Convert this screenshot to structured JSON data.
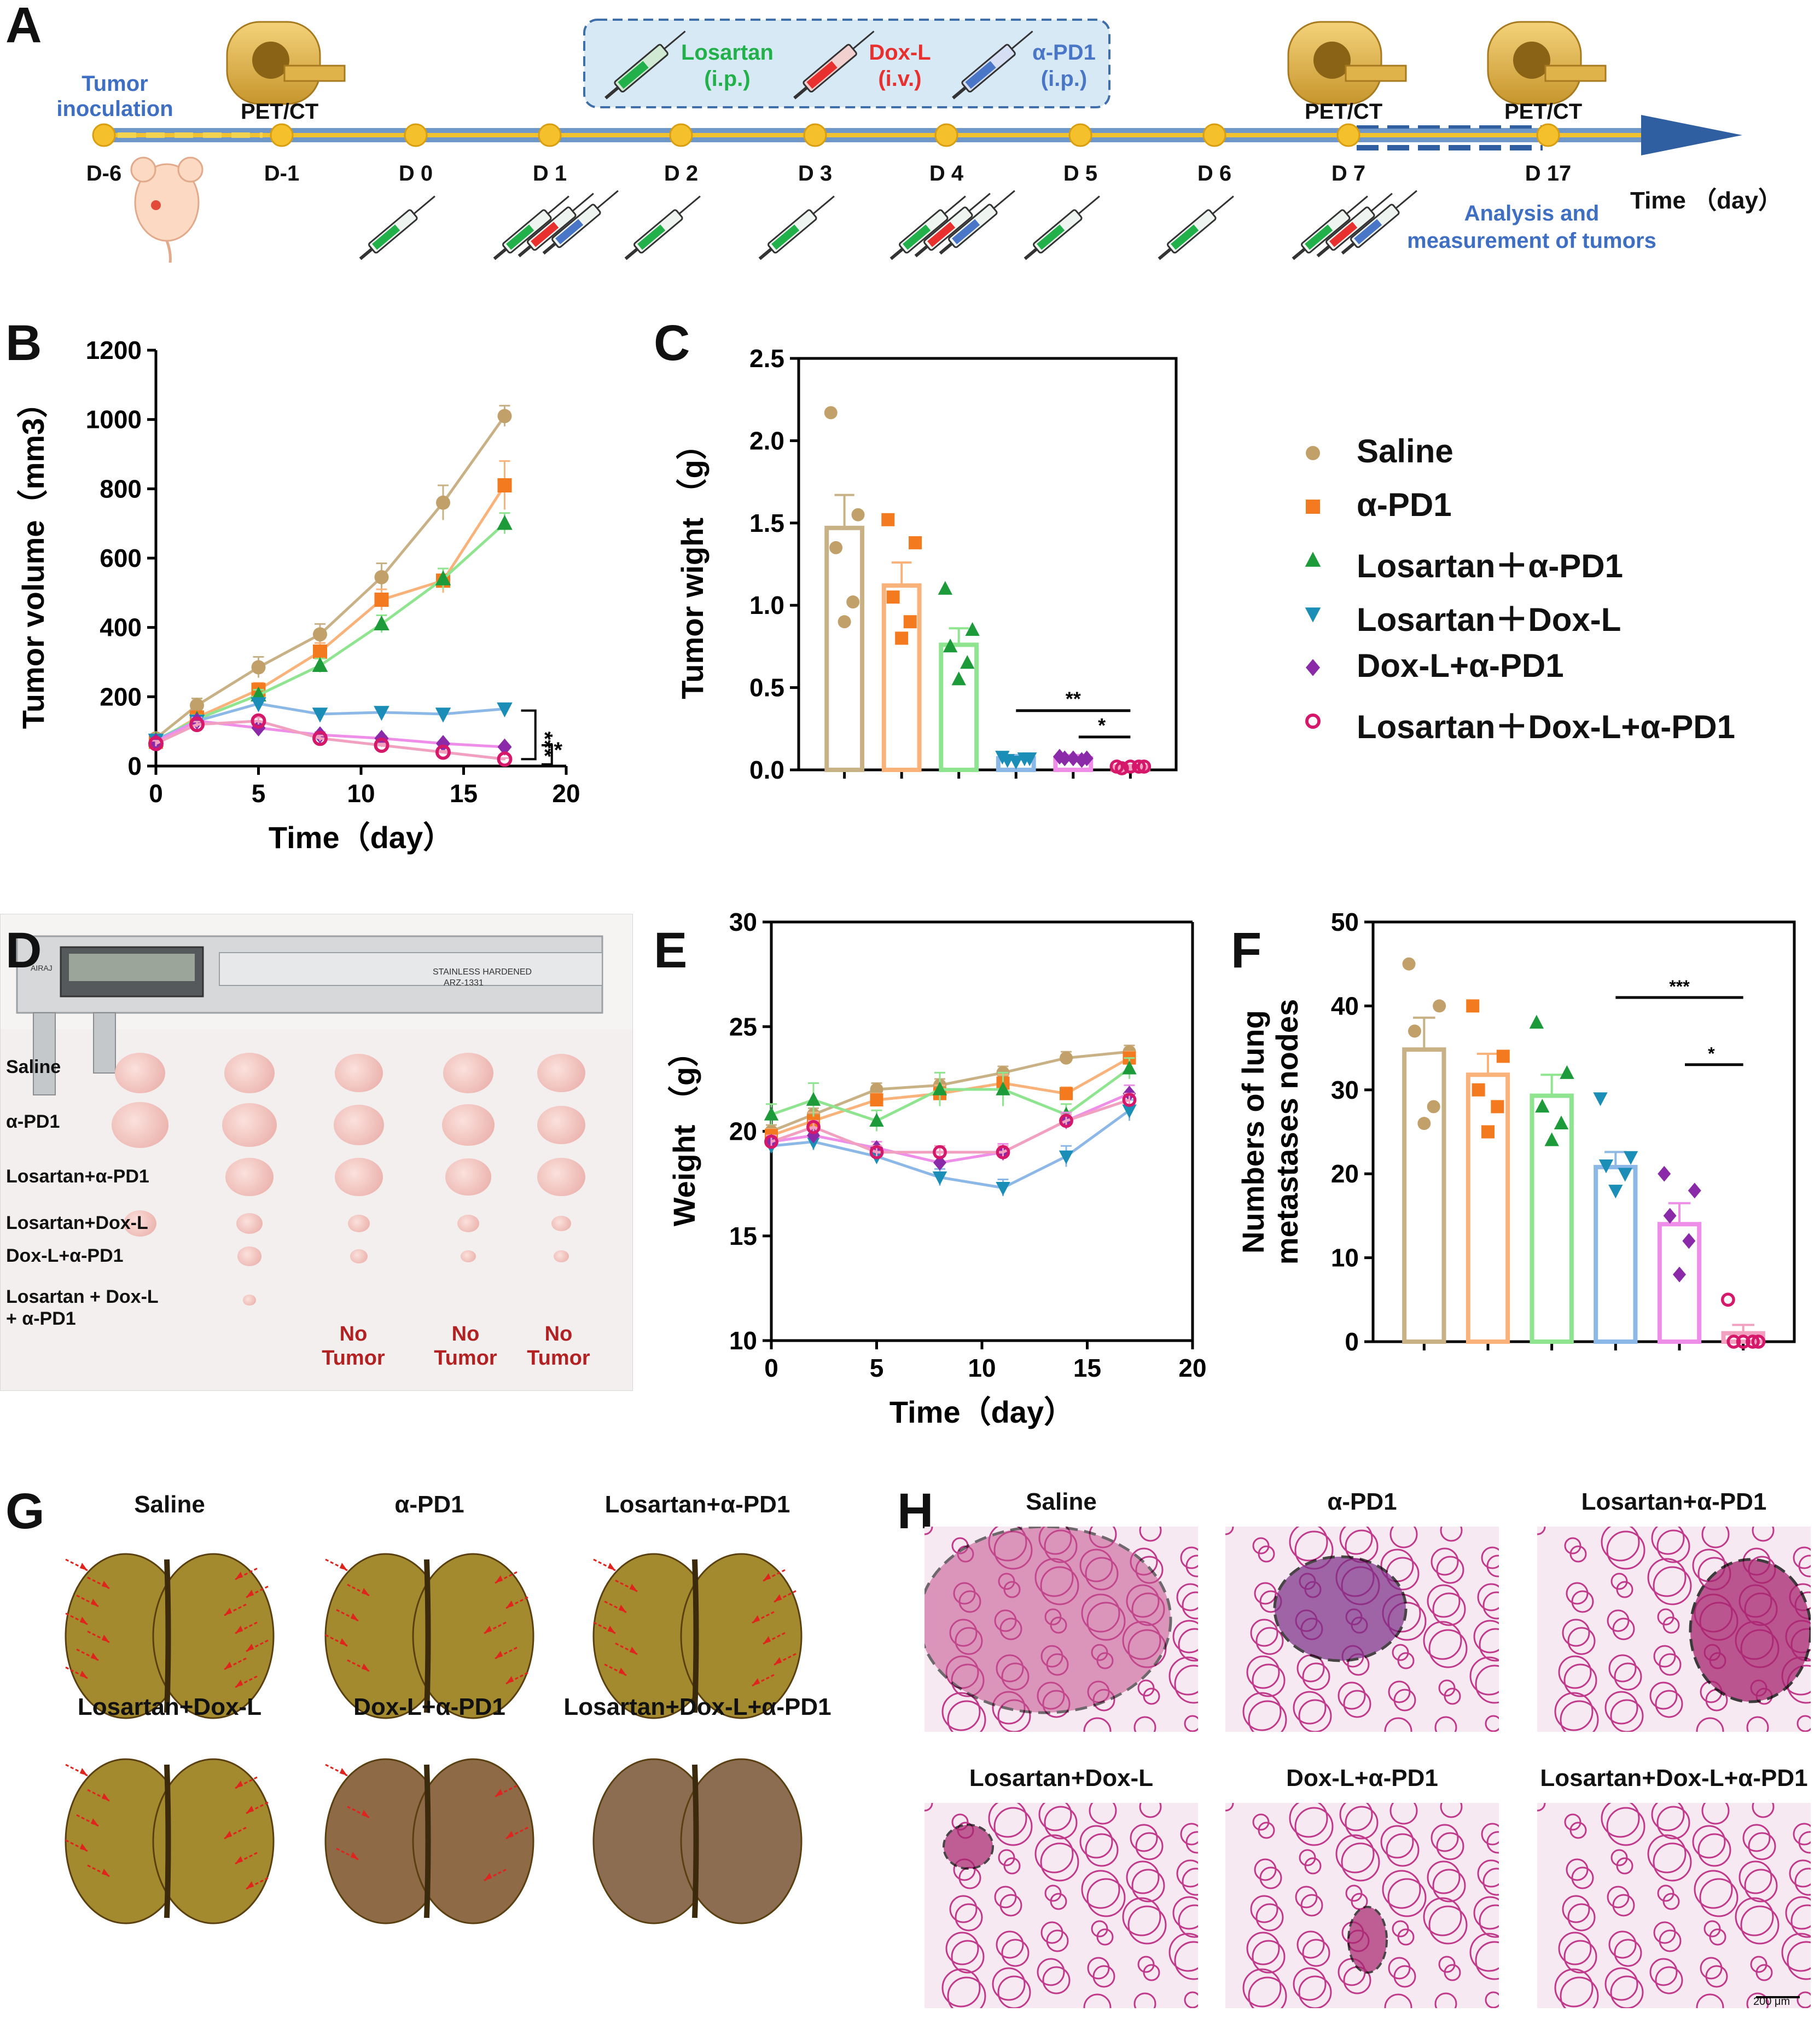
{
  "panels": {
    "a": "A",
    "b": "B",
    "c": "C",
    "d": "D",
    "e": "E",
    "f": "F",
    "g": "G",
    "h": "H"
  },
  "timeline": {
    "tumor_inoculation": [
      "Tumor",
      "inoculation"
    ],
    "pet_ct": "PET/CT",
    "days": [
      "D-6",
      "D-1",
      "D 0",
      "D 1",
      "D 2",
      "D 3",
      "D 4",
      "D 5",
      "D 6",
      "D 7",
      "D 17"
    ],
    "legend": [
      {
        "name": "Losartan",
        "route": "(i.p.)",
        "color": "#22b04a"
      },
      {
        "name": "Dox-L",
        "route": "(i.v.)",
        "color": "#e8312f"
      },
      {
        "name": "α-PD1",
        "route": "(i.p.)",
        "color": "#4a76c8"
      }
    ],
    "time_axis_label": "Time （day）",
    "analysis": [
      "Analysis and",
      "measurement of tumors"
    ]
  },
  "groups": [
    {
      "name": "Saline",
      "color": "#c2a06a",
      "marker": "circle"
    },
    {
      "name": "α-PD1",
      "color": "#f47a1f",
      "marker": "square"
    },
    {
      "name": "Losartan＋α-PD1",
      "color": "#1d9a3a",
      "marker": "triangle-up"
    },
    {
      "name": "Losartan＋Dox-L",
      "color": "#1b8eb8",
      "marker": "triangle-down"
    },
    {
      "name": "Dox-L+α-PD1",
      "color": "#8a2aa8",
      "marker": "diamond"
    },
    {
      "name": "Losartan＋Dox-L+α-PD1",
      "color": "#d6186b",
      "marker": "open-circle"
    }
  ],
  "chart_data": [
    {
      "id": "B",
      "type": "line",
      "ylabel": "Tumor volume（mm3）",
      "xlabel": "Time（day）",
      "xlim": [
        0,
        20
      ],
      "ylim": [
        0,
        1200
      ],
      "xticks": [
        0,
        5,
        10,
        15,
        20
      ],
      "yticks": [
        0,
        200,
        400,
        600,
        800,
        1000,
        1200
      ],
      "x": [
        0,
        2,
        5,
        8,
        11,
        14,
        17
      ],
      "series": [
        {
          "name": "Saline",
          "values": [
            80,
            175,
            285,
            380,
            545,
            760,
            1010
          ],
          "errors": [
            10,
            20,
            30,
            30,
            40,
            50,
            30
          ]
        },
        {
          "name": "α-PD1",
          "values": [
            70,
            140,
            220,
            330,
            480,
            535,
            810
          ],
          "errors": [
            10,
            15,
            20,
            25,
            30,
            35,
            70
          ]
        },
        {
          "name": "Losartan＋α-PD1",
          "values": [
            75,
            135,
            205,
            290,
            410,
            540,
            700
          ],
          "errors": [
            8,
            12,
            15,
            20,
            25,
            30,
            30
          ]
        },
        {
          "name": "Losartan＋Dox-L",
          "values": [
            75,
            130,
            180,
            150,
            155,
            150,
            165
          ],
          "errors": [
            8,
            10,
            15,
            12,
            10,
            10,
            12
          ]
        },
        {
          "name": "Dox-L+α-PD1",
          "values": [
            70,
            130,
            110,
            90,
            80,
            65,
            55
          ],
          "errors": [
            8,
            10,
            10,
            8,
            6,
            5,
            5
          ]
        },
        {
          "name": "Losartan＋Dox-L+α-PD1",
          "values": [
            65,
            120,
            130,
            80,
            60,
            40,
            20
          ],
          "errors": [
            8,
            8,
            10,
            8,
            5,
            4,
            3
          ]
        }
      ],
      "significance": [
        "***",
        "*"
      ]
    },
    {
      "id": "C",
      "type": "bar",
      "ylabel": "Tumor wight （g）",
      "ylim": [
        0,
        2.5
      ],
      "yticks": [
        0.0,
        0.5,
        1.0,
        1.5,
        2.0,
        2.5
      ],
      "categories": [
        "Saline",
        "α-PD1",
        "Losartan＋α-PD1",
        "Losartan＋Dox-L",
        "Dox-L+α-PD1",
        "Losartan＋Dox-L+α-PD1"
      ],
      "values": [
        1.47,
        1.12,
        0.76,
        0.07,
        0.07,
        0.02
      ],
      "errors": [
        0.2,
        0.14,
        0.1,
        0.02,
        0.02,
        0.01
      ],
      "points": [
        [
          2.17,
          1.55,
          1.35,
          1.02,
          0.9
        ],
        [
          1.52,
          1.38,
          1.05,
          0.9,
          0.8
        ],
        [
          1.1,
          0.85,
          0.75,
          0.65,
          0.55
        ],
        [
          0.08,
          0.07,
          0.06,
          0.07,
          0.05
        ],
        [
          0.08,
          0.07,
          0.07,
          0.06,
          0.07
        ],
        [
          0.02,
          0.02,
          0.01,
          0.02,
          0.02
        ]
      ],
      "significance": [
        {
          "label": "**",
          "from": 3,
          "to": 5
        },
        {
          "label": "*",
          "from": 4,
          "to": 5
        }
      ]
    },
    {
      "id": "E",
      "type": "line",
      "ylabel": "Weight （g）",
      "xlabel": "Time（day）",
      "xlim": [
        0,
        20
      ],
      "ylim": [
        10,
        30
      ],
      "xticks": [
        0,
        5,
        10,
        15,
        20
      ],
      "yticks": [
        10,
        15,
        20,
        25,
        30
      ],
      "x": [
        0,
        2,
        5,
        8,
        11,
        14,
        17
      ],
      "series": [
        {
          "name": "Saline",
          "values": [
            20.0,
            20.8,
            22.0,
            22.2,
            22.8,
            23.5,
            23.8
          ],
          "errors": [
            0.3,
            0.3,
            0.3,
            0.3,
            0.3,
            0.3,
            0.3
          ]
        },
        {
          "name": "α-PD1",
          "values": [
            19.8,
            20.5,
            21.5,
            21.8,
            22.3,
            21.8,
            23.5
          ],
          "errors": [
            0.3,
            0.4,
            0.3,
            0.4,
            0.4,
            0.3,
            0.3
          ]
        },
        {
          "name": "Losartan＋α-PD1",
          "values": [
            20.8,
            21.5,
            20.5,
            22.0,
            22.0,
            20.8,
            23.0
          ],
          "errors": [
            0.5,
            0.8,
            0.5,
            0.8,
            0.8,
            0.5,
            0.5
          ]
        },
        {
          "name": "Losartan＋Dox-L",
          "values": [
            19.3,
            19.5,
            18.8,
            17.8,
            17.3,
            18.8,
            21.0
          ],
          "errors": [
            0.3,
            0.4,
            0.3,
            0.4,
            0.4,
            0.5,
            0.5
          ]
        },
        {
          "name": "Dox-L+α-PD1",
          "values": [
            19.5,
            19.8,
            19.2,
            18.5,
            19.0,
            20.5,
            21.8
          ],
          "errors": [
            0.3,
            0.3,
            0.3,
            0.3,
            0.4,
            0.4,
            0.4
          ]
        },
        {
          "name": "Losartan＋Dox-L+α-PD1",
          "values": [
            19.5,
            20.2,
            19.0,
            19.0,
            19.0,
            20.5,
            21.5
          ],
          "errors": [
            0.3,
            0.3,
            0.3,
            0.3,
            0.3,
            0.3,
            0.3
          ]
        }
      ]
    },
    {
      "id": "F",
      "type": "bar",
      "ylabel": [
        "Numbers of lung",
        "metastases nodes"
      ],
      "ylim": [
        0,
        50
      ],
      "yticks": [
        0,
        10,
        20,
        30,
        40,
        50
      ],
      "categories": [
        "Saline",
        "α-PD1",
        "Losartan＋α-PD1",
        "Losartan＋Dox-L",
        "Dox-L+α-PD1",
        "Losartan＋Dox-L+α-PD1"
      ],
      "values": [
        34.8,
        31.8,
        29.3,
        20.8,
        14.0,
        1.0
      ],
      "errors": [
        3.8,
        2.5,
        2.5,
        1.8,
        2.5,
        1.0
      ],
      "points": [
        [
          45,
          40,
          37,
          28,
          26
        ],
        [
          40,
          34,
          30,
          28,
          25
        ],
        [
          38,
          32,
          28,
          26,
          24
        ],
        [
          29,
          22,
          21,
          20,
          18
        ],
        [
          20,
          18,
          15,
          12,
          8
        ],
        [
          5,
          0,
          0,
          0,
          0
        ]
      ],
      "significance": [
        {
          "label": "***",
          "from": 3,
          "to": 5
        },
        {
          "label": "*",
          "from": 4,
          "to": 5
        }
      ]
    }
  ],
  "panel_d": {
    "caliper_text": [
      "STAINLESS HARDENED",
      "ARZ-1331",
      "AIRAJ"
    ],
    "row_labels": [
      "Saline",
      "α-PD1",
      "Losartan+α-PD1",
      "Losartan+Dox-L",
      "Dox-L+α-PD1",
      "Losartan + Dox-L",
      "+ α-PD1"
    ],
    "no_tumor": [
      "No",
      "Tumor"
    ]
  },
  "panel_g_titles": [
    "Saline",
    "α-PD1",
    "Losartan+α-PD1",
    "Losartan+Dox-L",
    "Dox-L+α-PD1",
    "Losartan+Dox-L+α-PD1"
  ],
  "panel_h_titles": [
    "Saline",
    "α-PD1",
    "Losartan+α-PD1",
    "Losartan+Dox-L",
    "Dox-L+α-PD1",
    "Losartan+Dox-L+α-PD1"
  ],
  "scale_bar": "200 μm"
}
